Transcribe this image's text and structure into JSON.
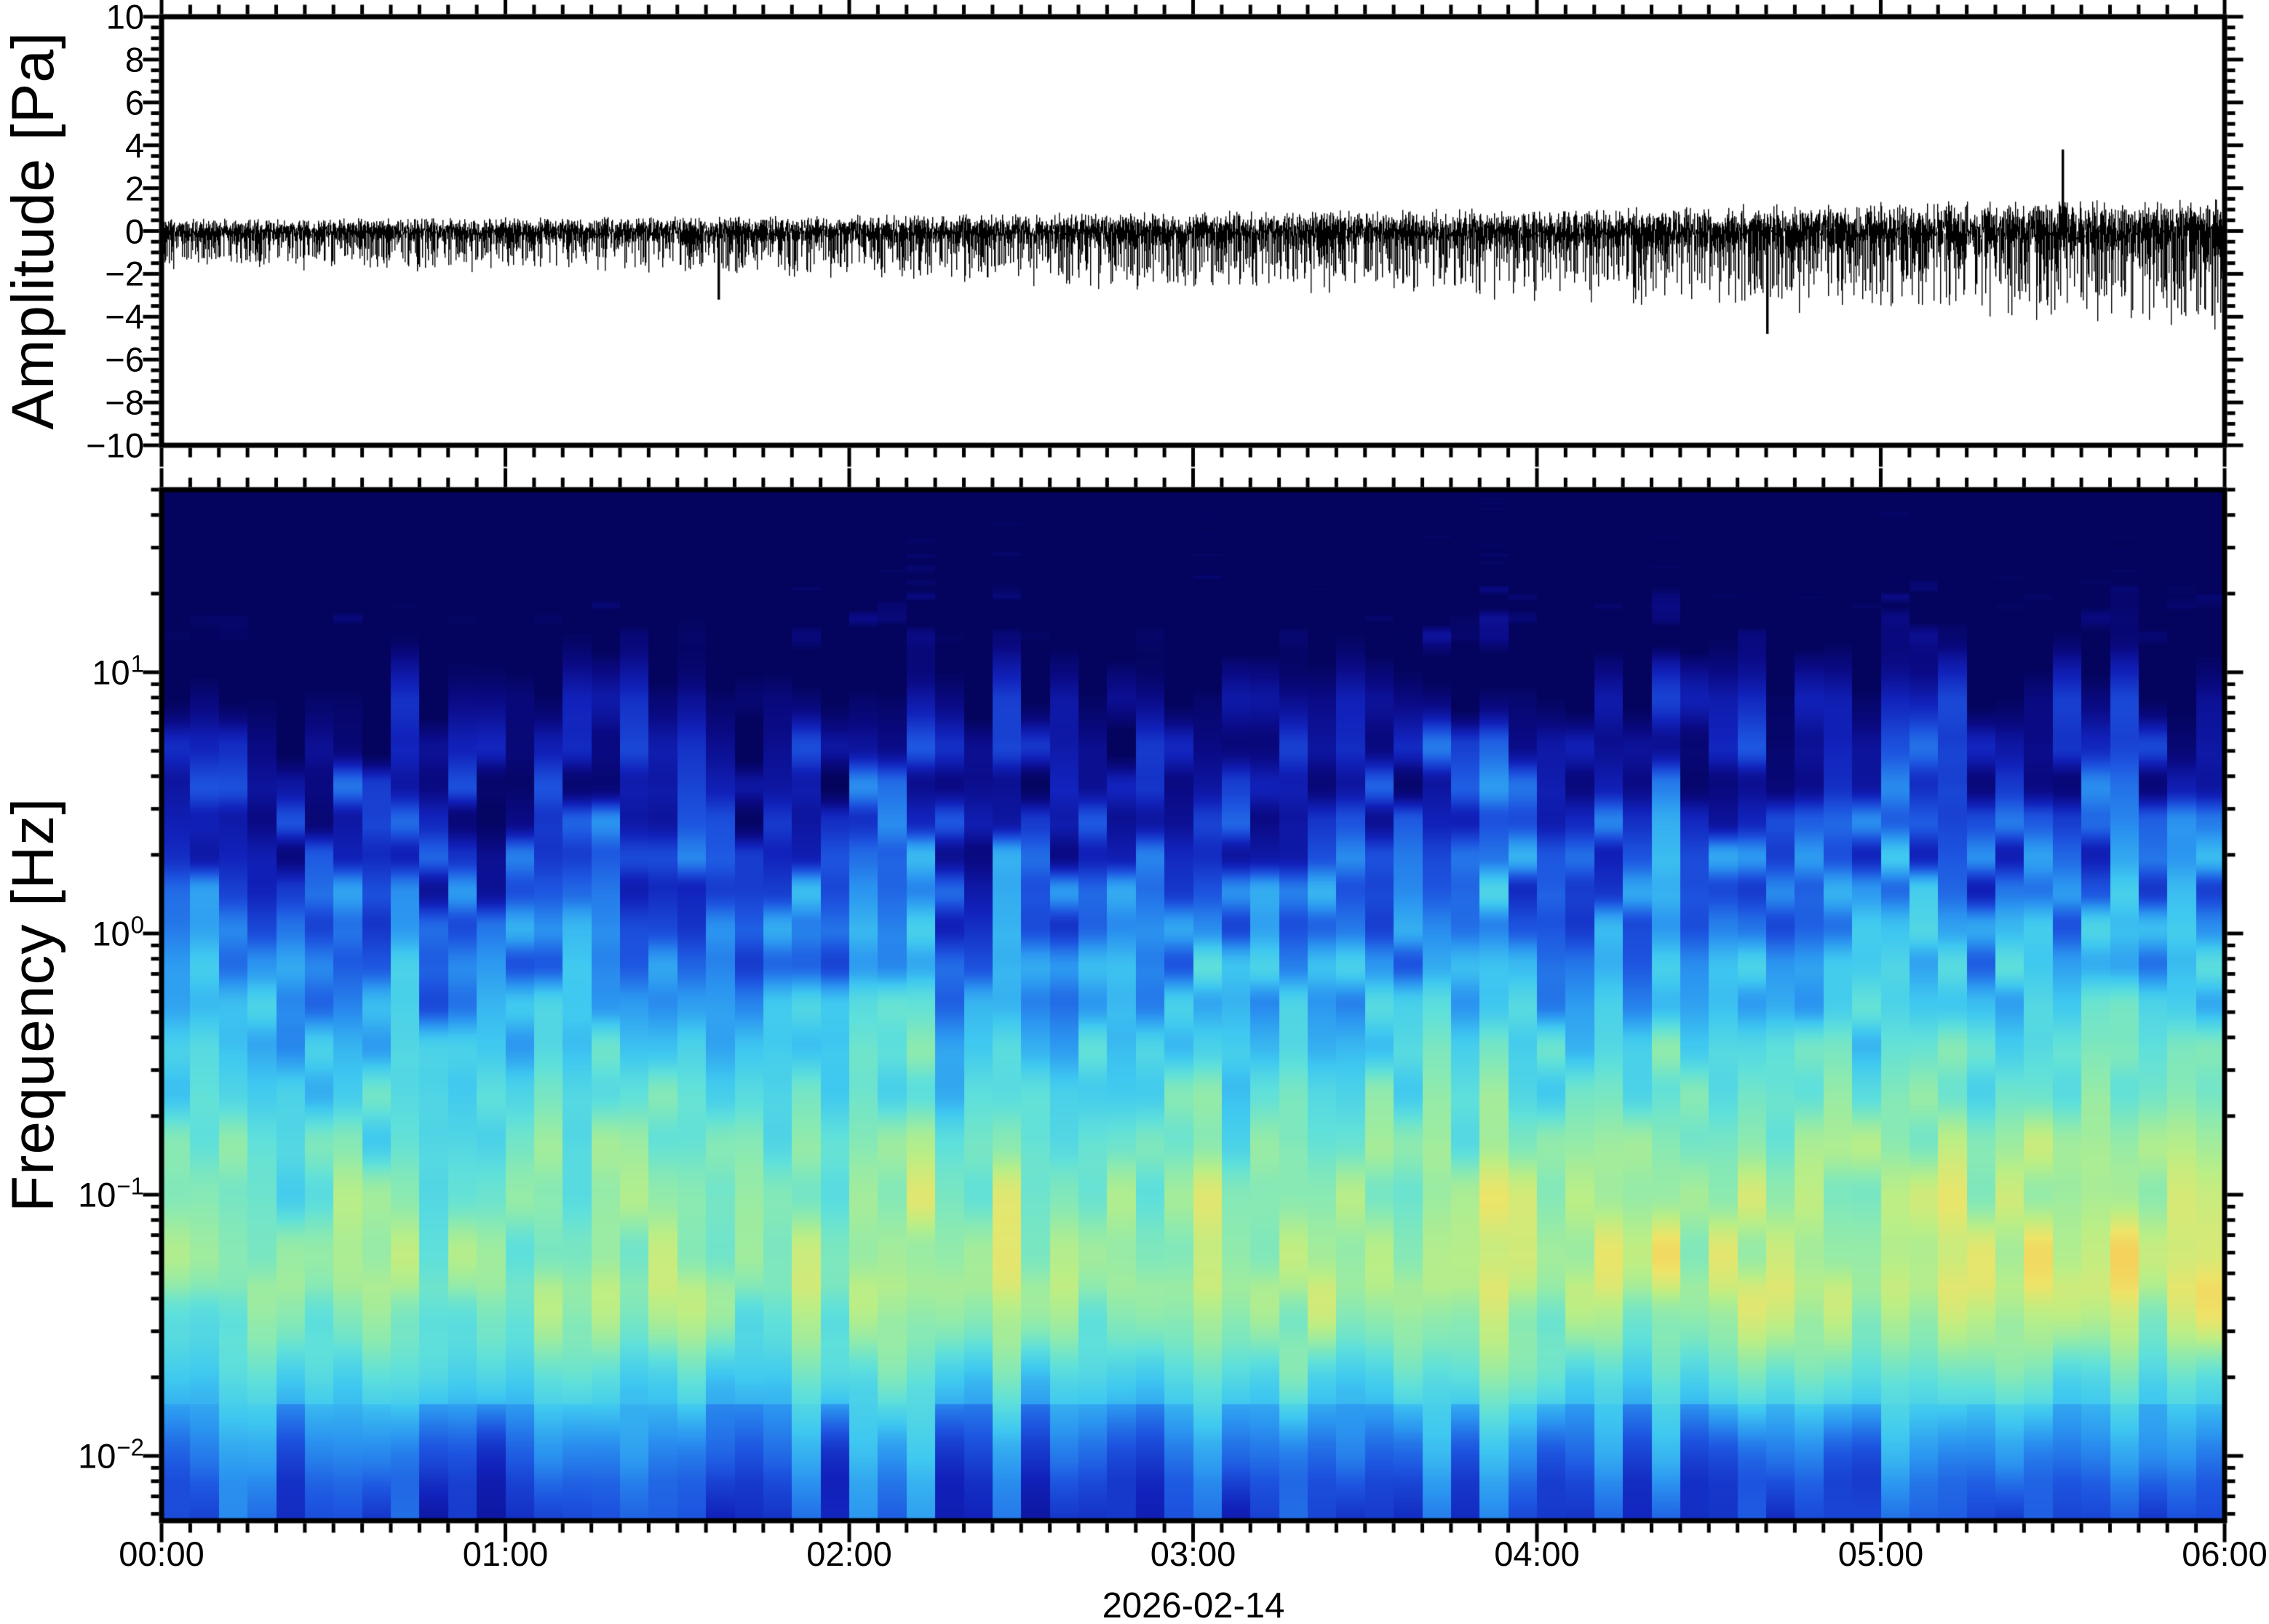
{
  "figure": {
    "date_label": "2026-02-14",
    "background": "#ffffff",
    "frame_color": "#000000",
    "trace_color": "#000000"
  },
  "chart_data": [
    {
      "type": "line",
      "subtype": "seismoacoustic-waveform",
      "title": "",
      "ylabel": "Amplitude [Pa]",
      "ylim": [
        -10,
        10
      ],
      "ytick_values": [
        10,
        8,
        6,
        4,
        2,
        0,
        -2,
        -4,
        -6,
        -8,
        -10
      ],
      "ytick_labels": [
        "10",
        "8",
        "6",
        "4",
        "2",
        "0",
        "−2",
        "−4",
        "−6",
        "−8",
        "−10"
      ],
      "ytick_minor_step_pa": 0.5,
      "x_start": "00:00",
      "x_end": "06:00",
      "x_date": "2026-02-14",
      "xtick_minor_minutes": 5,
      "xtick_major_minutes": 60,
      "series_description": "zero-mean broadband pressure noise, envelope growing with time",
      "noise_envelope": {
        "hours": [
          0,
          1,
          2,
          3,
          4,
          5,
          6
        ],
        "sigma_pa": [
          0.16,
          0.18,
          0.21,
          0.26,
          0.3,
          0.36,
          0.44
        ]
      },
      "notable_spikes": [
        {
          "hour": 1.62,
          "amplitude_pa": -1.6
        },
        {
          "hour": 4.67,
          "amplitude_pa": -2.4
        },
        {
          "hour": 5.53,
          "amplitude_pa": 1.9
        }
      ],
      "seed": 7
    },
    {
      "type": "heatmap",
      "subtype": "spectrogram",
      "title": "",
      "ylabel": "Frequency [Hz]",
      "yscale": "log",
      "freq_min_hz": 0.00565,
      "freq_max_hz": 50,
      "ytick_decades": [
        {
          "base": "10",
          "exp": "1",
          "value": 1
        },
        {
          "base": "10",
          "exp": "0",
          "value": 0
        },
        {
          "base": "10",
          "exp": "−1",
          "value": -1
        },
        {
          "base": "10",
          "exp": "−2",
          "value": -2
        }
      ],
      "xtick_labels": [
        "00:00",
        "01:00",
        "02:00",
        "03:00",
        "04:00",
        "05:00",
        "06:00"
      ],
      "xtick_minor_minutes": 5,
      "time_bins": 72,
      "legend": "none (no colorbar shown)",
      "power_profile": {
        "log10_freq": [
          1.7,
          1.4,
          1.1,
          0.9,
          0.6,
          0.3,
          0.0,
          -0.3,
          -0.6,
          -0.9,
          -1.15,
          -1.35,
          -1.55,
          -1.75,
          -1.95,
          -2.1,
          -2.25
        ],
        "level": [
          0.02,
          0.05,
          0.14,
          0.26,
          0.33,
          0.4,
          0.47,
          0.54,
          0.62,
          0.7,
          0.74,
          0.76,
          0.68,
          0.55,
          0.44,
          0.38,
          0.35
        ]
      },
      "time_trend_amp": {
        "log10_freq": [
          1.7,
          1.0,
          0.0,
          -0.6,
          -1.0,
          -1.4,
          -1.8,
          -2.25
        ],
        "amp": [
          0.02,
          0.035,
          0.05,
          0.06,
          0.07,
          0.07,
          0.04,
          0.02
        ]
      },
      "striation_amp": {
        "log10_freq": [
          1.7,
          1.3,
          1.0,
          0.3,
          -0.3,
          -0.6,
          -1.5,
          -1.8,
          -2.25
        ],
        "amp": [
          0.05,
          0.08,
          0.13,
          0.12,
          0.09,
          0.08,
          0.08,
          0.05,
          0.04
        ]
      },
      "colormap_stops": [
        {
          "t": 0.0,
          "color": "#04045e"
        },
        {
          "t": 0.08,
          "color": "#0a0a85"
        },
        {
          "t": 0.16,
          "color": "#1122bb"
        },
        {
          "t": 0.24,
          "color": "#1d55e0"
        },
        {
          "t": 0.32,
          "color": "#2b95f0"
        },
        {
          "t": 0.4,
          "color": "#3fc8f0"
        },
        {
          "t": 0.48,
          "color": "#5fe0db"
        },
        {
          "t": 0.56,
          "color": "#8ceab0"
        },
        {
          "t": 0.64,
          "color": "#bcee85"
        },
        {
          "t": 0.72,
          "color": "#eee468"
        },
        {
          "t": 0.8,
          "color": "#f9c351"
        },
        {
          "t": 0.88,
          "color": "#f89a43"
        },
        {
          "t": 0.95,
          "color": "#f2704c"
        },
        {
          "t": 1.0,
          "color": "#e95452"
        }
      ],
      "seed": 11
    }
  ]
}
